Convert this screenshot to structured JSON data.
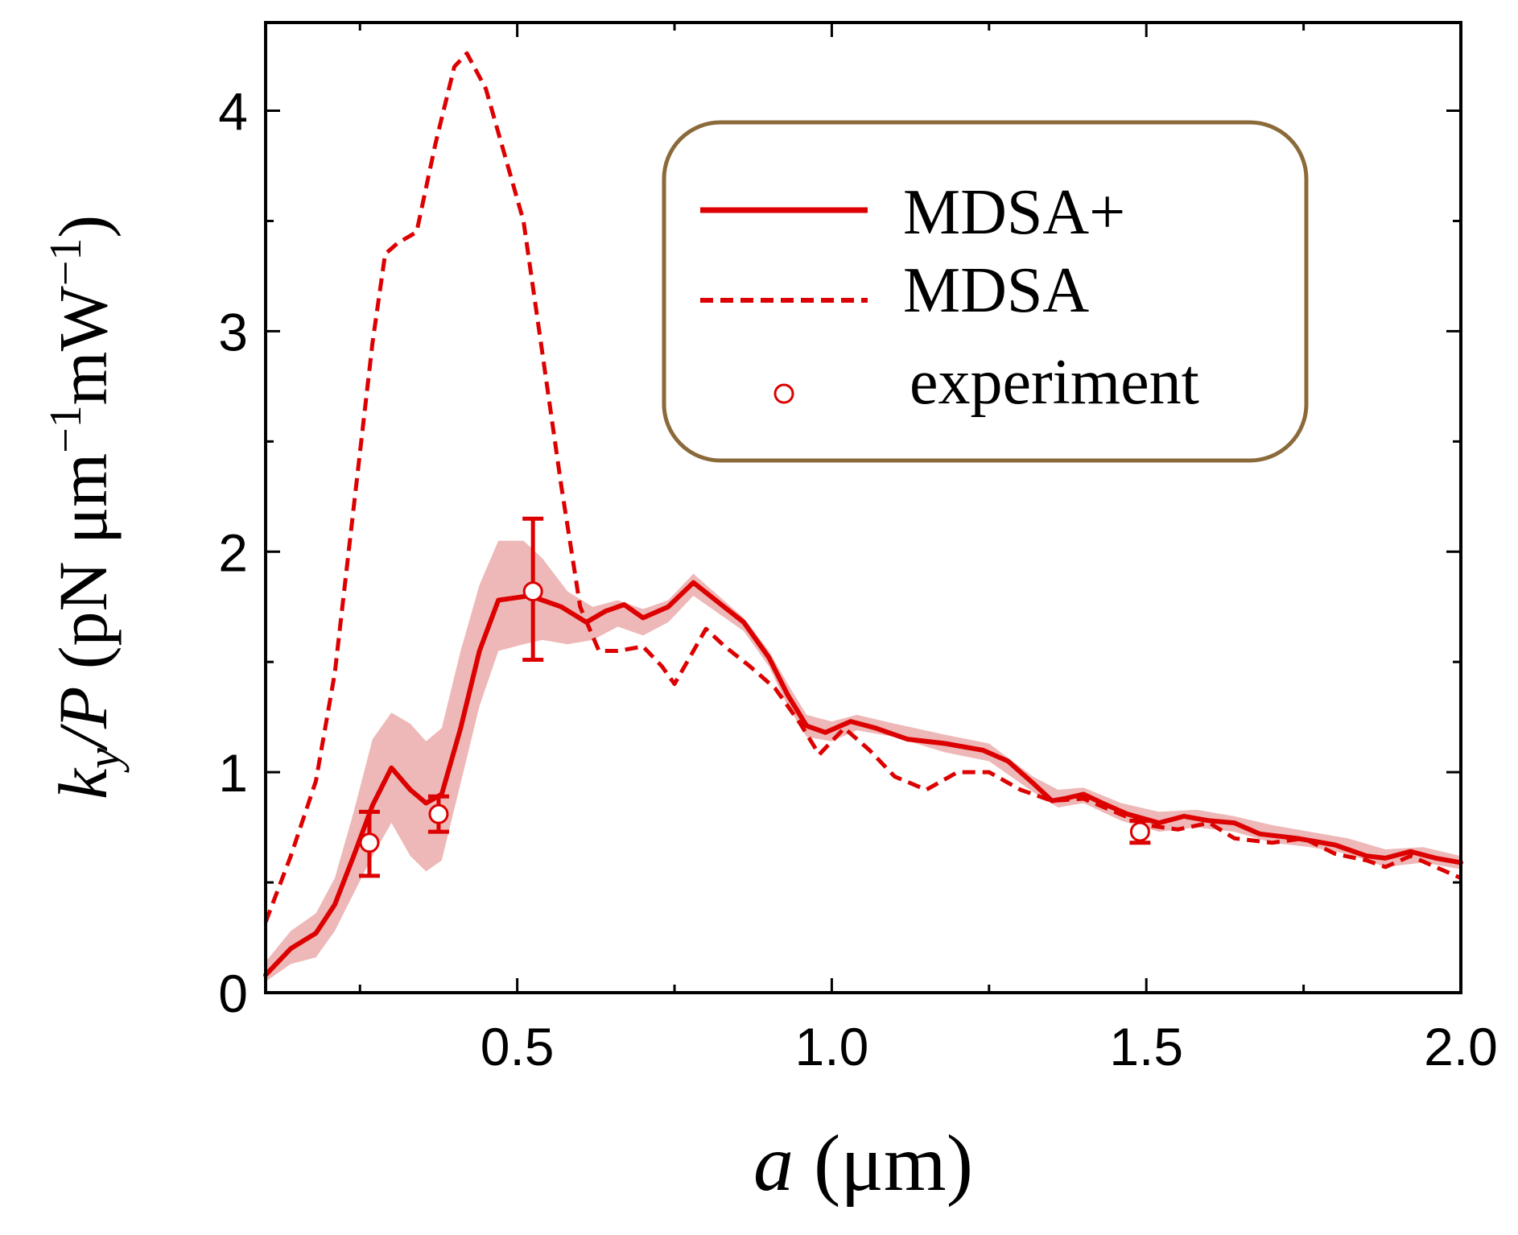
{
  "chart_data": {
    "type": "line",
    "x_axis": {
      "label_var": "a",
      "label_unit": "(μm)",
      "lim": [
        0.1,
        2.0
      ],
      "ticks": [
        0.5,
        1.0,
        1.5,
        2.0
      ],
      "tick_labels": [
        "0.5",
        "1.0",
        "1.5",
        "2.0"
      ],
      "minor_ticks": [
        0.25,
        0.75,
        1.25,
        1.75
      ]
    },
    "y_axis": {
      "label_var": "k",
      "label_sub": "y",
      "label_mid": "/P",
      "label_unit_pre": "(pN μm",
      "label_exp1": "−1",
      "label_unit_mid": "mW",
      "label_exp2": "−1",
      "label_unit_post": ")",
      "lim": [
        0,
        4.4
      ],
      "ticks": [
        0,
        1,
        2,
        3,
        4
      ],
      "tick_labels": [
        "0",
        "1",
        "2",
        "3",
        "4"
      ],
      "minor_ticks": [
        0.5,
        1.5,
        2.5,
        3.5
      ]
    },
    "grid": false,
    "legend": {
      "position": "top-right",
      "border_color": "#8b6a3a",
      "entries": [
        {
          "label": "MDSA+",
          "style": "solid"
        },
        {
          "label": "MDSA",
          "style": "dashed"
        },
        {
          "label": "experiment",
          "style": "marker"
        }
      ]
    },
    "colors": {
      "line": "#dd0000",
      "band": "#e8a0a0",
      "marker_fill": "#ffffff"
    },
    "series": [
      {
        "name": "MDSA+",
        "style": "solid",
        "points": [
          [
            0.1,
            0.08
          ],
          [
            0.14,
            0.2
          ],
          [
            0.18,
            0.27
          ],
          [
            0.21,
            0.4
          ],
          [
            0.24,
            0.62
          ],
          [
            0.27,
            0.85
          ],
          [
            0.3,
            1.02
          ],
          [
            0.33,
            0.92
          ],
          [
            0.355,
            0.86
          ],
          [
            0.38,
            0.9
          ],
          [
            0.41,
            1.2
          ],
          [
            0.44,
            1.55
          ],
          [
            0.47,
            1.78
          ],
          [
            0.52,
            1.8
          ],
          [
            0.57,
            1.75
          ],
          [
            0.61,
            1.68
          ],
          [
            0.64,
            1.73
          ],
          [
            0.67,
            1.76
          ],
          [
            0.7,
            1.7
          ],
          [
            0.74,
            1.75
          ],
          [
            0.78,
            1.86
          ],
          [
            0.82,
            1.77
          ],
          [
            0.86,
            1.68
          ],
          [
            0.9,
            1.52
          ],
          [
            0.93,
            1.35
          ],
          [
            0.96,
            1.21
          ],
          [
            0.99,
            1.18
          ],
          [
            1.03,
            1.23
          ],
          [
            1.07,
            1.2
          ],
          [
            1.12,
            1.15
          ],
          [
            1.18,
            1.13
          ],
          [
            1.24,
            1.1
          ],
          [
            1.28,
            1.05
          ],
          [
            1.32,
            0.95
          ],
          [
            1.35,
            0.87
          ],
          [
            1.37,
            0.88
          ],
          [
            1.4,
            0.9
          ],
          [
            1.43,
            0.86
          ],
          [
            1.47,
            0.81
          ],
          [
            1.52,
            0.77
          ],
          [
            1.56,
            0.8
          ],
          [
            1.6,
            0.78
          ],
          [
            1.64,
            0.77
          ],
          [
            1.68,
            0.72
          ],
          [
            1.74,
            0.7
          ],
          [
            1.8,
            0.67
          ],
          [
            1.85,
            0.62
          ],
          [
            1.88,
            0.61
          ],
          [
            1.92,
            0.64
          ],
          [
            1.96,
            0.61
          ],
          [
            2.0,
            0.59
          ]
        ]
      },
      {
        "name": "MDSA",
        "style": "dashed",
        "points": [
          [
            0.1,
            0.32
          ],
          [
            0.14,
            0.62
          ],
          [
            0.18,
            0.96
          ],
          [
            0.21,
            1.45
          ],
          [
            0.24,
            2.2
          ],
          [
            0.27,
            2.95
          ],
          [
            0.29,
            3.35
          ],
          [
            0.31,
            3.4
          ],
          [
            0.34,
            3.45
          ],
          [
            0.37,
            3.85
          ],
          [
            0.4,
            4.2
          ],
          [
            0.42,
            4.26
          ],
          [
            0.45,
            4.1
          ],
          [
            0.48,
            3.8
          ],
          [
            0.51,
            3.5
          ],
          [
            0.54,
            2.9
          ],
          [
            0.57,
            2.3
          ],
          [
            0.6,
            1.75
          ],
          [
            0.63,
            1.55
          ],
          [
            0.66,
            1.55
          ],
          [
            0.7,
            1.57
          ],
          [
            0.73,
            1.48
          ],
          [
            0.75,
            1.4
          ],
          [
            0.78,
            1.55
          ],
          [
            0.8,
            1.65
          ],
          [
            0.83,
            1.57
          ],
          [
            0.87,
            1.48
          ],
          [
            0.91,
            1.38
          ],
          [
            0.95,
            1.22
          ],
          [
            0.98,
            1.08
          ],
          [
            1.02,
            1.2
          ],
          [
            1.06,
            1.1
          ],
          [
            1.1,
            0.98
          ],
          [
            1.15,
            0.92
          ],
          [
            1.2,
            1.0
          ],
          [
            1.25,
            1.0
          ],
          [
            1.3,
            0.92
          ],
          [
            1.35,
            0.87
          ],
          [
            1.4,
            0.88
          ],
          [
            1.45,
            0.82
          ],
          [
            1.5,
            0.76
          ],
          [
            1.55,
            0.74
          ],
          [
            1.6,
            0.77
          ],
          [
            1.64,
            0.7
          ],
          [
            1.7,
            0.68
          ],
          [
            1.75,
            0.7
          ],
          [
            1.8,
            0.63
          ],
          [
            1.85,
            0.6
          ],
          [
            1.88,
            0.57
          ],
          [
            1.92,
            0.62
          ],
          [
            1.96,
            0.57
          ],
          [
            2.0,
            0.52
          ]
        ]
      },
      {
        "name": "MDSA+ band",
        "style": "band",
        "upper": [
          [
            0.1,
            0.14
          ],
          [
            0.14,
            0.28
          ],
          [
            0.18,
            0.36
          ],
          [
            0.21,
            0.52
          ],
          [
            0.24,
            0.82
          ],
          [
            0.27,
            1.15
          ],
          [
            0.3,
            1.27
          ],
          [
            0.33,
            1.22
          ],
          [
            0.355,
            1.14
          ],
          [
            0.38,
            1.2
          ],
          [
            0.41,
            1.55
          ],
          [
            0.44,
            1.85
          ],
          [
            0.47,
            2.05
          ],
          [
            0.51,
            2.05
          ],
          [
            0.54,
            1.97
          ],
          [
            0.58,
            1.82
          ],
          [
            0.62,
            1.75
          ],
          [
            0.66,
            1.78
          ],
          [
            0.7,
            1.74
          ],
          [
            0.74,
            1.78
          ],
          [
            0.78,
            1.9
          ],
          [
            0.82,
            1.8
          ],
          [
            0.86,
            1.7
          ],
          [
            0.9,
            1.55
          ],
          [
            0.93,
            1.4
          ],
          [
            0.96,
            1.26
          ],
          [
            1.0,
            1.23
          ],
          [
            1.04,
            1.26
          ],
          [
            1.1,
            1.22
          ],
          [
            1.18,
            1.17
          ],
          [
            1.25,
            1.13
          ],
          [
            1.32,
            0.98
          ],
          [
            1.36,
            0.92
          ],
          [
            1.4,
            0.93
          ],
          [
            1.46,
            0.86
          ],
          [
            1.52,
            0.82
          ],
          [
            1.58,
            0.83
          ],
          [
            1.64,
            0.8
          ],
          [
            1.7,
            0.76
          ],
          [
            1.76,
            0.73
          ],
          [
            1.82,
            0.7
          ],
          [
            1.88,
            0.65
          ],
          [
            1.94,
            0.66
          ],
          [
            2.0,
            0.62
          ]
        ],
        "lower": [
          [
            0.1,
            0.05
          ],
          [
            0.14,
            0.13
          ],
          [
            0.18,
            0.16
          ],
          [
            0.21,
            0.28
          ],
          [
            0.24,
            0.45
          ],
          [
            0.27,
            0.62
          ],
          [
            0.3,
            0.77
          ],
          [
            0.33,
            0.62
          ],
          [
            0.355,
            0.55
          ],
          [
            0.38,
            0.6
          ],
          [
            0.41,
            0.95
          ],
          [
            0.44,
            1.3
          ],
          [
            0.47,
            1.55
          ],
          [
            0.51,
            1.58
          ],
          [
            0.54,
            1.6
          ],
          [
            0.58,
            1.58
          ],
          [
            0.62,
            1.6
          ],
          [
            0.66,
            1.66
          ],
          [
            0.7,
            1.62
          ],
          [
            0.74,
            1.68
          ],
          [
            0.78,
            1.8
          ],
          [
            0.82,
            1.72
          ],
          [
            0.86,
            1.64
          ],
          [
            0.9,
            1.48
          ],
          [
            0.93,
            1.3
          ],
          [
            0.96,
            1.16
          ],
          [
            1.0,
            1.14
          ],
          [
            1.04,
            1.19
          ],
          [
            1.1,
            1.16
          ],
          [
            1.18,
            1.09
          ],
          [
            1.25,
            1.05
          ],
          [
            1.32,
            0.91
          ],
          [
            1.36,
            0.84
          ],
          [
            1.4,
            0.86
          ],
          [
            1.46,
            0.78
          ],
          [
            1.52,
            0.73
          ],
          [
            1.58,
            0.75
          ],
          [
            1.64,
            0.73
          ],
          [
            1.7,
            0.68
          ],
          [
            1.76,
            0.66
          ],
          [
            1.82,
            0.63
          ],
          [
            1.88,
            0.57
          ],
          [
            1.94,
            0.59
          ],
          [
            2.0,
            0.56
          ]
        ]
      },
      {
        "name": "experiment",
        "style": "marker",
        "points": [
          {
            "x": 0.265,
            "y": 0.68,
            "err_lo": 0.53,
            "err_hi": 0.82
          },
          {
            "x": 0.375,
            "y": 0.81,
            "err_lo": 0.73,
            "err_hi": 0.89
          },
          {
            "x": 0.525,
            "y": 1.82,
            "err_lo": 1.51,
            "err_hi": 2.15
          },
          {
            "x": 1.49,
            "y": 0.73,
            "err_lo": 0.68,
            "err_hi": 0.78
          }
        ]
      }
    ]
  }
}
